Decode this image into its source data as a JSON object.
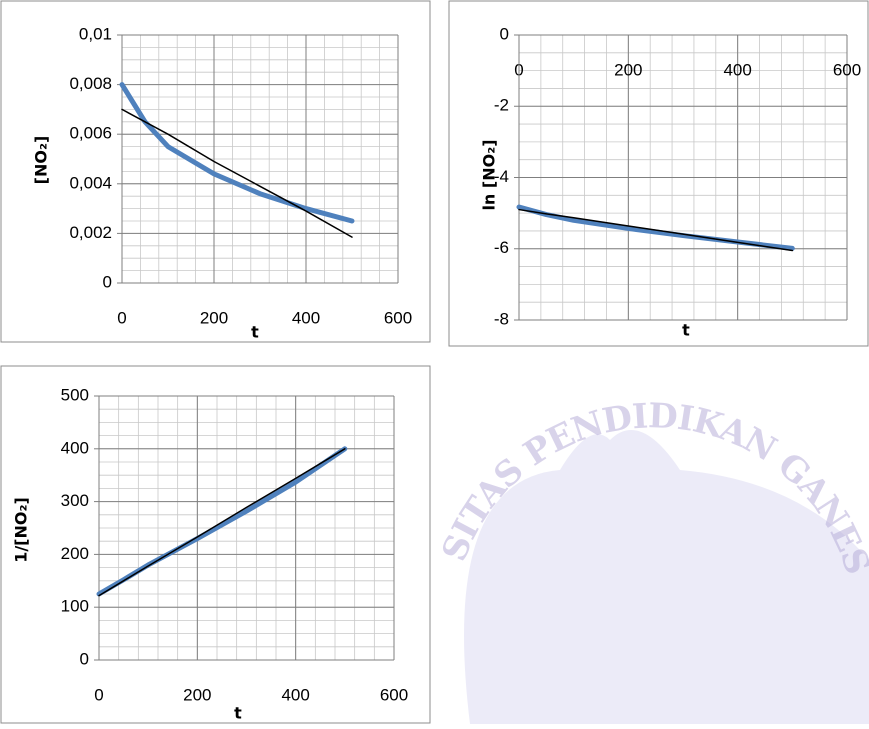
{
  "chart_data": [
    {
      "type": "line",
      "x_label": "t",
      "y_label": "[NO₂]",
      "x": [
        0,
        50,
        100,
        200,
        300,
        400,
        500
      ],
      "series": [
        {
          "color": "#4f81bd",
          "values": [
            0.008,
            0.0065,
            0.0055,
            0.0044,
            0.0036,
            0.003,
            0.0025
          ]
        },
        {
          "color": "#000000",
          "values": [
            0.007,
            0.0065,
            0.006,
            0.0049,
            0.0039,
            0.0029,
            0.00185
          ]
        }
      ],
      "xlim": [
        0,
        600
      ],
      "xticks": [
        0,
        200,
        400,
        600
      ],
      "ylim": [
        0,
        0.01
      ],
      "yticks": [
        0,
        {
          "value": 0.002,
          "label": "0,002"
        },
        {
          "value": 0.004,
          "label": "0,004"
        },
        {
          "value": 0.006,
          "label": "0,006"
        },
        {
          "value": 0.008,
          "label": "0,008"
        },
        {
          "value": 0.01,
          "label": "0,01"
        }
      ],
      "grid": true
    },
    {
      "type": "line",
      "x_label": "t",
      "y_label": "ln [NO₂]",
      "x": [
        0,
        50,
        100,
        200,
        300,
        400,
        500
      ],
      "series": [
        {
          "color": "#4f81bd",
          "values": [
            -4.83,
            -5.04,
            -5.2,
            -5.43,
            -5.63,
            -5.81,
            -5.99
          ]
        },
        {
          "color": "#000000",
          "values": [
            -4.9,
            -5.02,
            -5.13,
            -5.36,
            -5.59,
            -5.82,
            -6.05
          ]
        }
      ],
      "xlim": [
        0,
        600
      ],
      "xticks": [
        0,
        200,
        400,
        600
      ],
      "ylim": [
        -8,
        0
      ],
      "yticks": [
        -8,
        -6,
        -4,
        -2,
        0
      ],
      "grid": true
    },
    {
      "type": "line",
      "x_label": "t",
      "y_label": "1/[NO₂]",
      "x": [
        0,
        50,
        100,
        200,
        300,
        400,
        500
      ],
      "series": [
        {
          "color": "#4f81bd",
          "values": [
            125,
            152,
            180,
            230,
            282,
            337,
            400
          ]
        },
        {
          "color": "#000000",
          "values": [
            122,
            150,
            178,
            233,
            289,
            344,
            400
          ]
        }
      ],
      "xlim": [
        0,
        600
      ],
      "xticks": [
        0,
        200,
        400,
        600
      ],
      "ylim": [
        0,
        500
      ],
      "yticks": [
        0,
        100,
        200,
        300,
        400,
        500
      ],
      "grid": true
    }
  ],
  "watermark": "SITAS PENDIDIKAN GANES"
}
